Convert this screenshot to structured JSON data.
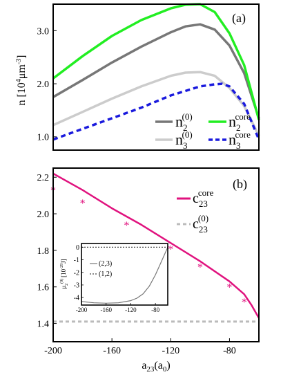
{
  "chart_data": [
    {
      "id": "a",
      "type": "line",
      "panel_label": "(a)",
      "ylabel_main": "n",
      "ylabel_unit": "[10",
      "ylabel_unit_exp": "4",
      "ylabel_unit_rest": "μm",
      "ylabel_unit_exp2": "-3",
      "ylabel_unit_close": "]",
      "xlim": [
        -200,
        -60
      ],
      "ylim": [
        0.75,
        3.5
      ],
      "yticks": [
        1.0,
        2.0,
        3.0
      ],
      "ytick_labels": [
        "1.0",
        "2.0",
        "3.0"
      ],
      "series": [
        {
          "base": "n",
          "sub": "2",
          "sup": "(0)",
          "color": "#777777",
          "dash": "none",
          "x": [
            -200,
            -180,
            -160,
            -140,
            -120,
            -110,
            -100,
            -90,
            -80,
            -70,
            -60
          ],
          "y": [
            1.75,
            2.07,
            2.4,
            2.7,
            2.97,
            3.08,
            3.12,
            3.02,
            2.72,
            2.2,
            1.35
          ]
        },
        {
          "base": "n",
          "sub": "2",
          "sup": "core",
          "color": "#22ee22",
          "dash": "none",
          "x": [
            -200,
            -180,
            -160,
            -140,
            -120,
            -110,
            -100,
            -90,
            -80,
            -70,
            -60
          ],
          "y": [
            2.1,
            2.52,
            2.9,
            3.2,
            3.42,
            3.49,
            3.5,
            3.35,
            2.95,
            2.35,
            1.32
          ]
        },
        {
          "base": "n",
          "sub": "3",
          "sup": "(0)",
          "color": "#cccccc",
          "dash": "none",
          "x": [
            -200,
            -180,
            -160,
            -140,
            -120,
            -110,
            -100,
            -90,
            -80,
            -70,
            -60
          ],
          "y": [
            1.22,
            1.47,
            1.72,
            1.95,
            2.15,
            2.21,
            2.22,
            2.15,
            1.92,
            1.58,
            1.02
          ]
        },
        {
          "base": "n",
          "sub": "3",
          "sup": "core",
          "color": "#1a1add",
          "dash": "7,5",
          "x": [
            -200,
            -180,
            -160,
            -140,
            -120,
            -100,
            -90,
            -85,
            -80,
            -70,
            -60
          ],
          "y": [
            0.95,
            1.15,
            1.35,
            1.55,
            1.78,
            1.95,
            1.99,
            2.0,
            1.95,
            1.62,
            0.95
          ]
        }
      ]
    },
    {
      "id": "b",
      "type": "line",
      "panel_label": "(b)",
      "xlabel_base": "a",
      "xlabel_sub": "23",
      "xlabel_unit": "(a",
      "xlabel_unit_sub": "0",
      "xlabel_unit_close": ")",
      "xlim": [
        -200,
        -60
      ],
      "ylim": [
        1.3,
        2.25
      ],
      "xticks": [
        -200,
        -160,
        -120,
        -80
      ],
      "xtick_labels": [
        "-200",
        "-160",
        "-120",
        "-80"
      ],
      "yticks": [
        1.4,
        1.6,
        1.8,
        2.0,
        2.2
      ],
      "ytick_labels": [
        "1.4",
        "1.6",
        "1.8",
        "2.0",
        "2.2"
      ],
      "series": [
        {
          "base": "c",
          "sub": "23",
          "sup": "core",
          "color": "#e0127e",
          "dash": "none",
          "x": [
            -200,
            -180,
            -160,
            -140,
            -120,
            -100,
            -80,
            -70,
            -65,
            -60
          ],
          "y": [
            2.22,
            2.13,
            2.03,
            1.94,
            1.84,
            1.74,
            1.63,
            1.56,
            1.5,
            1.43
          ]
        },
        {
          "base": "c",
          "sub": "23",
          "sup": "(0)",
          "color": "#bbbbbb",
          "dash": "5,4",
          "x": [
            -200,
            -60
          ],
          "y": [
            1.41,
            1.41
          ]
        }
      ],
      "markers": {
        "symbol": "*",
        "color": "#e0127e",
        "x": [
          -200,
          -180,
          -150,
          -120,
          -100,
          -80,
          -70
        ],
        "y": [
          2.13,
          2.06,
          1.94,
          1.81,
          1.71,
          1.6,
          1.52
        ]
      },
      "inset": {
        "type": "line",
        "ylabel": "μ",
        "ylabel_sub": "2",
        "ylabel_sup": "(0)",
        "ylabel_unit": "[10",
        "ylabel_unit_exp": "-29",
        "ylabel_unit_rest": "J]",
        "xlim": [
          -200,
          -60
        ],
        "ylim": [
          -4.6,
          0.3
        ],
        "xticks": [
          -200,
          -160,
          -120,
          -80
        ],
        "xtick_labels": [
          "-200",
          "-160",
          "-120",
          "-80"
        ],
        "yticks": [
          0,
          -1,
          -2,
          -3,
          -4
        ],
        "ytick_labels": [
          "0",
          "-1",
          "-2",
          "-3",
          "-4"
        ],
        "series": [
          {
            "name": "(2,3)",
            "color": "#777777",
            "dash": "none",
            "x": [
              -200,
              -180,
              -160,
              -140,
              -120,
              -110,
              -100,
              -90,
              -80,
              -70,
              -60
            ],
            "y": [
              -4.32,
              -4.42,
              -4.45,
              -4.42,
              -4.25,
              -4.05,
              -3.7,
              -3.1,
              -2.2,
              -1.1,
              0.0
            ]
          },
          {
            "name": "(1,2)",
            "color": "#444444",
            "dash": "2,2",
            "x": [
              -200,
              -60
            ],
            "y": [
              0.0,
              0.0
            ]
          }
        ]
      }
    }
  ]
}
